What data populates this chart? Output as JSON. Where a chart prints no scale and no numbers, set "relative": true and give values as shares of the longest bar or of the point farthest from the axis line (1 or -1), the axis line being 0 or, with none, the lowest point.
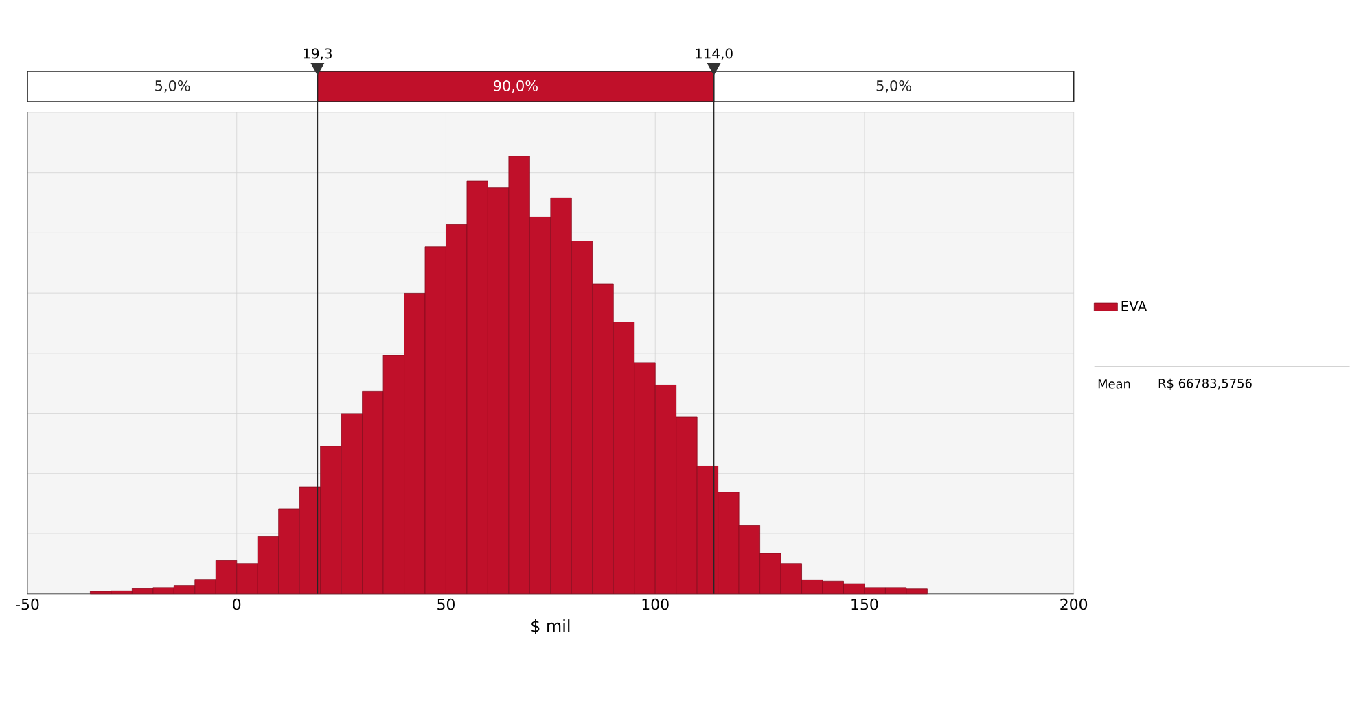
{
  "chart_data": {
    "type": "bar",
    "relative": true,
    "xlabel": "$ mil",
    "x": [
      -32.5,
      -27.5,
      -22.5,
      -17.5,
      -12.5,
      -7.5,
      -2.5,
      2.5,
      7.5,
      12.5,
      17.5,
      22.5,
      27.5,
      32.5,
      37.5,
      42.5,
      47.5,
      52.5,
      57.5,
      62.5,
      67.5,
      72.5,
      77.5,
      82.5,
      87.5,
      92.5,
      97.5,
      102.5,
      107.5,
      112.5,
      117.5,
      122.5,
      127.5,
      132.5,
      137.5,
      142.5,
      147.5,
      152.5,
      157.5,
      162.5
    ],
    "series": [
      {
        "name": "EVA",
        "color": "#c0102a",
        "values": [
          0.006,
          0.007,
          0.012,
          0.014,
          0.019,
          0.033,
          0.076,
          0.069,
          0.131,
          0.194,
          0.244,
          0.337,
          0.412,
          0.463,
          0.545,
          0.687,
          0.793,
          0.844,
          0.943,
          0.928,
          1,
          0.861,
          0.905,
          0.806,
          0.708,
          0.621,
          0.528,
          0.477,
          0.404,
          0.292,
          0.232,
          0.156,
          0.092,
          0.069,
          0.032,
          0.029,
          0.023,
          0.014,
          0.014,
          0.011
        ]
      }
    ],
    "xlim": [
      -50,
      200
    ],
    "xticks": [
      {
        "value": -50,
        "label": "-50"
      },
      {
        "value": 0,
        "label": "0"
      },
      {
        "value": 50,
        "label": "50"
      },
      {
        "value": 100,
        "label": "100"
      },
      {
        "value": 150,
        "label": "150"
      },
      {
        "value": 200,
        "label": "200"
      }
    ],
    "ref_lines": [
      {
        "axis": "x",
        "value": 19.3,
        "label": "19,3"
      },
      {
        "axis": "x",
        "value": 114.0,
        "label": "114,0"
      }
    ],
    "annotations": [
      "5,0%",
      "90,0%",
      "5,0%",
      "Mean",
      "R$ 66783,5756"
    ],
    "grid": true,
    "legend": "right"
  }
}
